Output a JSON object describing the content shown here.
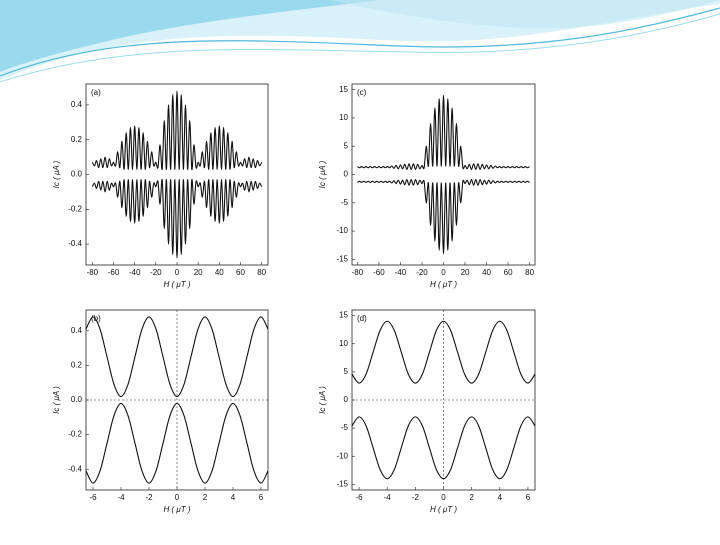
{
  "chart_data": [
    {
      "type": "line",
      "label": "(a)",
      "xlabel": "H ( μT )",
      "ylabel": "Ic ( μA )",
      "xlim": [
        -86,
        86
      ],
      "ylim": [
        -0.52,
        0.52
      ],
      "xticks": [
        -80,
        -60,
        -40,
        -20,
        0,
        20,
        40,
        60,
        80
      ],
      "yticks": [
        -0.4,
        -0.2,
        {
          "value": 0,
          "label": "0.0"
        },
        0.2,
        0.4
      ],
      "zero_lines": false,
      "x": [
        -80,
        -78,
        -76,
        -74,
        -72,
        -70,
        -68,
        -66,
        -64,
        -62,
        -60,
        -58,
        -56,
        -54,
        -52,
        -50,
        -48,
        -46,
        -44,
        -42,
        -40,
        -38,
        -36,
        -34,
        -32,
        -30,
        -28,
        -26,
        -24,
        -22,
        -20,
        -18,
        -16,
        -14,
        -12,
        -10,
        -8,
        -6,
        -4,
        -2,
        0,
        2,
        4,
        6,
        8,
        10,
        12,
        14,
        16,
        18,
        20,
        22,
        24,
        26,
        28,
        30,
        32,
        34,
        36,
        38,
        40,
        42,
        44,
        46,
        48,
        50,
        52,
        54,
        56,
        58,
        60,
        62,
        64,
        66,
        68,
        70,
        72,
        74,
        76,
        78,
        80
      ],
      "series": [
        {
          "color": "#111111",
          "values": [
            0.07,
            0.05,
            0.08,
            0.04,
            0.09,
            0.04,
            0.1,
            0.04,
            0.09,
            0.05,
            0.07,
            0.05,
            0.13,
            0.04,
            0.19,
            0.03,
            0.24,
            0.03,
            0.27,
            0.03,
            0.28,
            0.03,
            0.27,
            0.03,
            0.24,
            0.03,
            0.19,
            0.04,
            0.13,
            0.05,
            0.07,
            0.04,
            0.17,
            0.03,
            0.31,
            0.03,
            0.4,
            0.03,
            0.46,
            0.03,
            0.48,
            0.03,
            0.46,
            0.03,
            0.4,
            0.03,
            0.31,
            0.03,
            0.17,
            0.04,
            0.07,
            0.05,
            0.13,
            0.04,
            0.19,
            0.03,
            0.24,
            0.03,
            0.27,
            0.03,
            0.28,
            0.03,
            0.27,
            0.03,
            0.24,
            0.03,
            0.19,
            0.04,
            0.13,
            0.05,
            0.07,
            0.05,
            0.09,
            0.04,
            0.1,
            0.04,
            0.09,
            0.04,
            0.08,
            0.05,
            0.07
          ]
        },
        {
          "color": "#111111",
          "values": [
            -0.07,
            -0.05,
            -0.08,
            -0.04,
            -0.09,
            -0.04,
            -0.1,
            -0.04,
            -0.09,
            -0.05,
            -0.07,
            -0.05,
            -0.13,
            -0.04,
            -0.19,
            -0.03,
            -0.24,
            -0.03,
            -0.27,
            -0.03,
            -0.28,
            -0.03,
            -0.27,
            -0.03,
            -0.24,
            -0.03,
            -0.19,
            -0.04,
            -0.13,
            -0.05,
            -0.07,
            -0.04,
            -0.17,
            -0.03,
            -0.31,
            -0.03,
            -0.4,
            -0.03,
            -0.46,
            -0.03,
            -0.48,
            -0.03,
            -0.46,
            -0.03,
            -0.4,
            -0.03,
            -0.31,
            -0.03,
            -0.17,
            -0.04,
            -0.07,
            -0.05,
            -0.13,
            -0.04,
            -0.19,
            -0.03,
            -0.24,
            -0.03,
            -0.27,
            -0.03,
            -0.28,
            -0.03,
            -0.27,
            -0.03,
            -0.24,
            -0.03,
            -0.19,
            -0.04,
            -0.13,
            -0.05,
            -0.07,
            -0.05,
            -0.09,
            -0.04,
            -0.1,
            -0.04,
            -0.09,
            -0.04,
            -0.08,
            -0.05,
            -0.07
          ]
        }
      ]
    },
    {
      "type": "line",
      "label": "(c)",
      "xlabel": "H ( μT )",
      "ylabel": "Ic ( μA )",
      "xlim": [
        -85,
        85
      ],
      "ylim": [
        -16,
        16
      ],
      "xticks": [
        -80,
        -60,
        -40,
        -20,
        0,
        20,
        40,
        60,
        80
      ],
      "yticks": [
        -15,
        -10,
        -5,
        0,
        5,
        10,
        15
      ],
      "zero_lines": false,
      "x": [
        -80,
        -78,
        -76,
        -74,
        -72,
        -70,
        -68,
        -66,
        -64,
        -62,
        -60,
        -58,
        -56,
        -54,
        -52,
        -50,
        -48,
        -46,
        -44,
        -42,
        -40,
        -38,
        -36,
        -34,
        -32,
        -30,
        -28,
        -26,
        -24,
        -22,
        -20,
        -18,
        -16,
        -14,
        -12,
        -10,
        -8,
        -6,
        -4,
        -2,
        0,
        2,
        4,
        6,
        8,
        10,
        12,
        14,
        16,
        18,
        20,
        22,
        24,
        26,
        28,
        30,
        32,
        34,
        36,
        38,
        40,
        42,
        44,
        46,
        48,
        50,
        52,
        54,
        56,
        58,
        60,
        62,
        64,
        66,
        68,
        70,
        72,
        74,
        76,
        78,
        80
      ],
      "series": [
        {
          "color": "#111111",
          "values": [
            1.4,
            1.2,
            1.4,
            1.2,
            1.4,
            1.2,
            1.4,
            1.2,
            1.4,
            1.2,
            1.4,
            1.2,
            1.4,
            1.2,
            1.4,
            1.2,
            1.5,
            1.1,
            1.6,
            1,
            1.7,
            1,
            1.8,
            0.9,
            1.9,
            0.9,
            1.9,
            0.9,
            1.8,
            1,
            1.6,
            1.2,
            5,
            1.5,
            9,
            1.5,
            11.8,
            1.5,
            13.4,
            1.5,
            14,
            1.5,
            13.4,
            1.5,
            11.8,
            1.5,
            9,
            1.5,
            5,
            1.2,
            1.6,
            1,
            1.8,
            0.9,
            1.9,
            0.9,
            1.9,
            0.9,
            1.8,
            1,
            1.7,
            1,
            1.6,
            1.1,
            1.5,
            1.2,
            1.4,
            1.2,
            1.4,
            1.2,
            1.4,
            1.2,
            1.4,
            1.2,
            1.4,
            1.2,
            1.4,
            1.2,
            1.4,
            1.2,
            1.4
          ]
        },
        {
          "color": "#111111",
          "values": [
            -1.4,
            -1.2,
            -1.4,
            -1.2,
            -1.4,
            -1.2,
            -1.4,
            -1.2,
            -1.4,
            -1.2,
            -1.4,
            -1.2,
            -1.4,
            -1.2,
            -1.4,
            -1.2,
            -1.5,
            -1.1,
            -1.6,
            -1,
            -1.7,
            -1,
            -1.8,
            -0.9,
            -1.9,
            -0.9,
            -1.9,
            -0.9,
            -1.8,
            -1,
            -1.6,
            -1.2,
            -5,
            -1.5,
            -9,
            -1.5,
            -11.8,
            -1.5,
            -13.4,
            -1.5,
            -14,
            -1.5,
            -13.4,
            -1.5,
            -11.8,
            -1.5,
            -9,
            -1.5,
            -5,
            -1.2,
            -1.6,
            -1,
            -1.8,
            -0.9,
            -1.9,
            -0.9,
            -1.9,
            -0.9,
            -1.8,
            -1,
            -1.7,
            -1,
            -1.6,
            -1.1,
            -1.5,
            -1.2,
            -1.4,
            -1.2,
            -1.4,
            -1.2,
            -1.4,
            -1.2,
            -1.4,
            -1.2,
            -1.4,
            -1.2,
            -1.4,
            -1.2,
            -1.4,
            -1.2,
            -1.4
          ]
        }
      ]
    },
    {
      "type": "line",
      "label": "(b)",
      "xlabel": "H ( μT )",
      "ylabel": "Ic ( μA )",
      "xlim": [
        -6.5,
        6.5
      ],
      "ylim": [
        -0.52,
        0.52
      ],
      "xticks": [
        -6,
        -4,
        -2,
        0,
        2,
        4,
        6
      ],
      "yticks": [
        -0.4,
        -0.2,
        {
          "value": 0,
          "label": "0.0"
        },
        0.2,
        0.4
      ],
      "zero_lines": true,
      "x": [
        -6.5,
        -6,
        -5.5,
        -5,
        -4.5,
        -4,
        -3.5,
        -3,
        -2.5,
        -2,
        -1.5,
        -1,
        -0.5,
        0,
        0.5,
        1,
        1.5,
        2,
        2.5,
        3,
        3.5,
        4,
        4.5,
        5,
        5.5,
        6,
        6.5
      ],
      "series": [
        {
          "color": "#111111",
          "values": [
            0.41,
            0.48,
            0.41,
            0.25,
            0.09,
            0.02,
            0.09,
            0.25,
            0.41,
            0.48,
            0.41,
            0.25,
            0.09,
            0.02,
            0.09,
            0.25,
            0.41,
            0.48,
            0.41,
            0.25,
            0.09,
            0.02,
            0.09,
            0.25,
            0.41,
            0.48,
            0.41
          ]
        },
        {
          "color": "#111111",
          "values": [
            -0.41,
            -0.48,
            -0.41,
            -0.25,
            -0.09,
            -0.02,
            -0.09,
            -0.25,
            -0.41,
            -0.48,
            -0.41,
            -0.25,
            -0.09,
            -0.02,
            -0.09,
            -0.25,
            -0.41,
            -0.48,
            -0.41,
            -0.25,
            -0.09,
            -0.02,
            -0.09,
            -0.25,
            -0.41,
            -0.48,
            -0.41
          ]
        }
      ]
    },
    {
      "type": "line",
      "label": "(d)",
      "xlabel": "H ( μT )",
      "ylabel": "Ic ( μA )",
      "xlim": [
        -6.5,
        6.5
      ],
      "ylim": [
        -16,
        16
      ],
      "xticks": [
        -6,
        -4,
        -2,
        0,
        2,
        4,
        6
      ],
      "yticks": [
        -15,
        -10,
        -5,
        0,
        5,
        10,
        15
      ],
      "zero_lines": true,
      "x": [
        -6.5,
        -6,
        -5.5,
        -5,
        -4.5,
        -4,
        -3.5,
        -3,
        -2.5,
        -2,
        -1.5,
        -1,
        -0.5,
        0,
        0.5,
        1,
        1.5,
        2,
        2.5,
        3,
        3.5,
        4,
        4.5,
        5,
        5.5,
        6,
        6.5
      ],
      "series": [
        {
          "color": "#111111",
          "values": [
            4.6,
            3,
            4.6,
            8.5,
            12.4,
            14,
            12.4,
            8.5,
            4.6,
            3,
            4.6,
            8.5,
            12.4,
            14,
            12.4,
            8.5,
            4.6,
            3,
            4.6,
            8.5,
            12.4,
            14,
            12.4,
            8.5,
            4.6,
            3,
            4.6
          ]
        },
        {
          "color": "#111111",
          "values": [
            -4.6,
            -3,
            -4.6,
            -8.5,
            -12.4,
            -14,
            -12.4,
            -8.5,
            -4.6,
            -3,
            -4.6,
            -8.5,
            -12.4,
            -14,
            -12.4,
            -8.5,
            -4.6,
            -3,
            -4.6,
            -8.5,
            -12.4,
            -14,
            -12.4,
            -8.5,
            -4.6,
            -3,
            -4.6
          ]
        }
      ]
    }
  ]
}
